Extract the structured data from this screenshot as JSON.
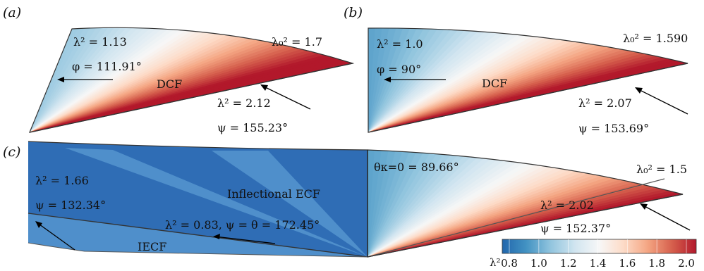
{
  "colormap": {
    "stops": [
      "#2166ac",
      "#4393c3",
      "#92c5de",
      "#d1e5f0",
      "#f7f7f7",
      "#fddbc7",
      "#f4a582",
      "#d6604d",
      "#b2182b"
    ],
    "dark_blue": "#2f6db5",
    "mid_blue": "#4f8fcb"
  },
  "panels": {
    "a": {
      "tag": "(a)",
      "l2_upper": "λ² = 1.13",
      "phi": "φ = 111.91°",
      "l0": "λ₀² = 1.7",
      "region": "DCF",
      "l2_lower": "λ² = 2.12",
      "psi": "ψ = 155.23°"
    },
    "b": {
      "tag": "(b)",
      "l2_upper": "λ² = 1.0",
      "phi": "φ = 90°",
      "l0": "λ₀² = 1.590",
      "region": "DCF",
      "l2_lower": "λ² = 2.07",
      "psi": "ψ = 153.69°"
    },
    "c": {
      "tag": "(c)",
      "l2_left": "λ² = 1.66",
      "psi_left": "ψ = 132.34°",
      "region_main": "Inflectional ECF",
      "mid": "λ² = 0.83,    ψ = θ = 172.45°",
      "region_small": "IECF",
      "theta": "θκ=0 = 89.66°",
      "l0": "λ₀² = 1.5",
      "l2_right": "λ² = 2.02",
      "psi_right": "ψ = 152.37°"
    }
  },
  "colorbar": {
    "symbol": "λ²",
    "ticks": [
      "0.8",
      "1.0",
      "1.2",
      "1.4",
      "1.6",
      "1.8",
      "2.0"
    ],
    "range": [
      0.8,
      2.0
    ]
  }
}
